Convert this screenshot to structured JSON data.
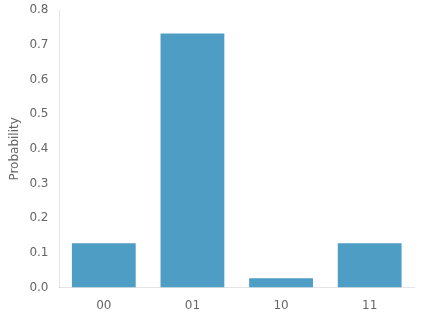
{
  "chart_data": {
    "type": "bar",
    "categories": [
      "00",
      "01",
      "10",
      "11"
    ],
    "values": [
      0.128,
      0.733,
      0.027,
      0.128
    ],
    "color": "#4d9dc4",
    "ylabel": "Probability",
    "ylim": [
      0,
      0.8
    ],
    "yticks": [
      {
        "value": 0,
        "label": "0.0"
      },
      0.1,
      0.2,
      0.3,
      0.4,
      0.5,
      0.6,
      0.7,
      0.8
    ],
    "grid": false
  }
}
